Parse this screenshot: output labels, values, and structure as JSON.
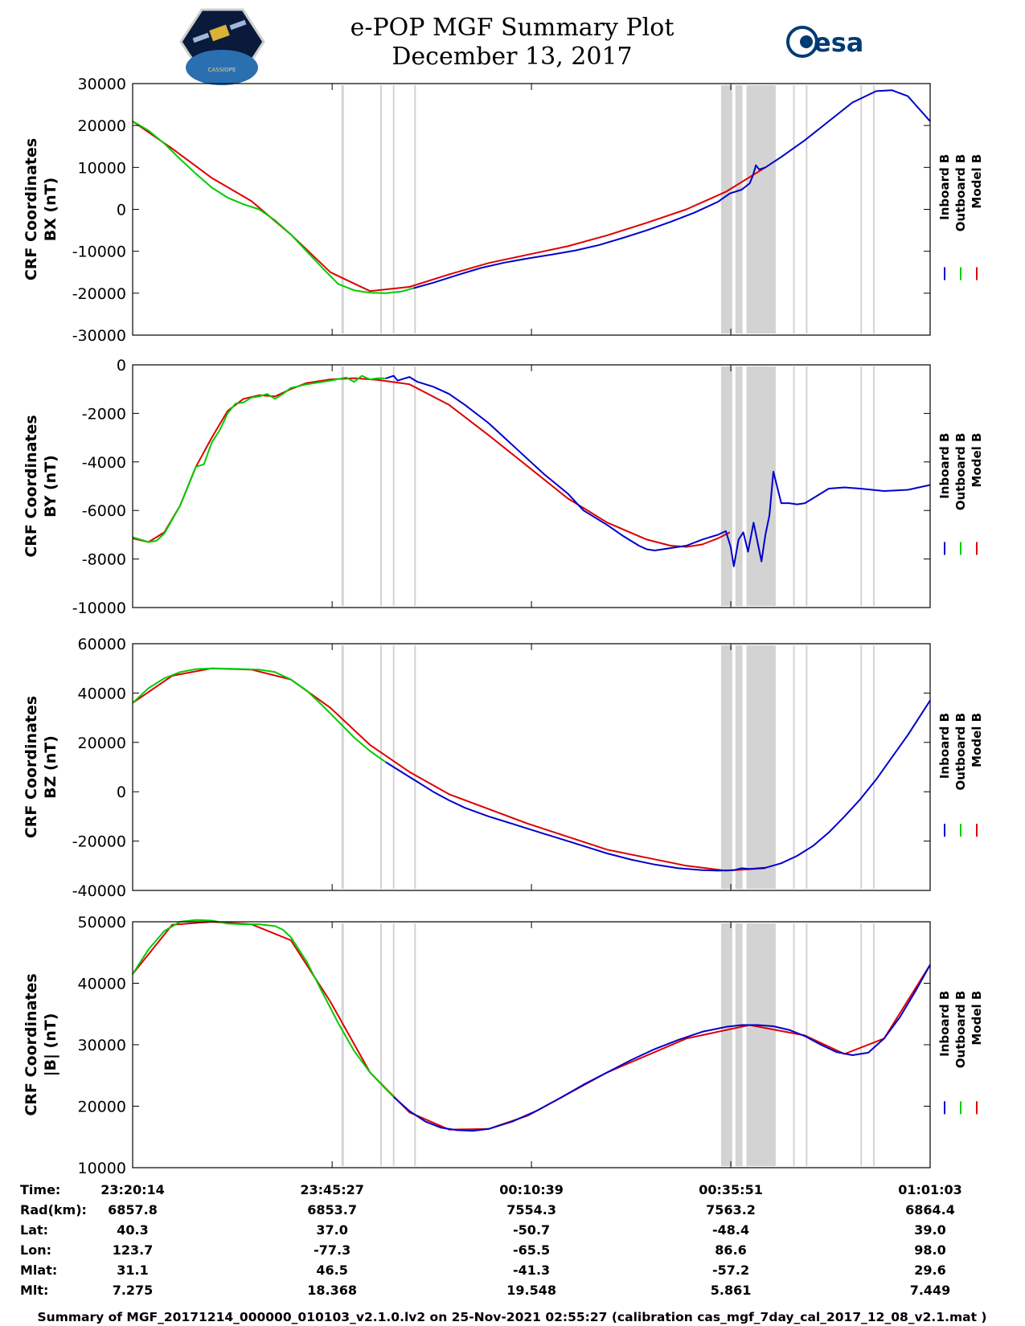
{
  "header": {
    "title": "e-POP MGF Summary Plot",
    "subtitle": "December 13, 2017",
    "logo_left_icon": "cassiope-satellite-logo",
    "logo_right_text": "esa"
  },
  "colors": {
    "inboard": "#0000cc",
    "outboard": "#00cc00",
    "model": "#dd0000",
    "gap_band": "#d3d3d3",
    "axis": "#000000"
  },
  "legend": {
    "entries": [
      {
        "label": "Inboard B",
        "color": "#0000cc"
      },
      {
        "label": "Outboard B",
        "color": "#00cc00"
      },
      {
        "label": "Model B",
        "color": "#dd0000"
      }
    ]
  },
  "x_ticks_minutes": [
    0,
    25.22,
    50.42,
    75.62,
    100.82
  ],
  "x_range_minutes": [
    0,
    100.82
  ],
  "gap_bands_minutes": [
    {
      "start": 26.4,
      "end": 26.7
    },
    {
      "start": 31.3,
      "end": 31.5
    },
    {
      "start": 32.9,
      "end": 33.1
    },
    {
      "start": 35.6,
      "end": 35.8
    },
    {
      "start": 74.4,
      "end": 75.8
    },
    {
      "start": 76.2,
      "end": 77.1
    },
    {
      "start": 77.6,
      "end": 81.3
    },
    {
      "start": 83.5,
      "end": 83.7
    },
    {
      "start": 85.1,
      "end": 85.3
    },
    {
      "start": 92.0,
      "end": 92.2
    },
    {
      "start": 93.6,
      "end": 93.8
    }
  ],
  "chart_data": [
    {
      "type": "line",
      "title": "e-POP MGF Summary Plot",
      "ylabel_line1": "CRF Coordinates",
      "ylabel_line2": "BX (nT)",
      "xlabel": "Time",
      "ylim": [
        -30000,
        30000
      ],
      "y_ticks": [
        "30000",
        "20000",
        "10000",
        "0",
        "-10000",
        "-20000",
        "-30000"
      ],
      "y_tick_values": [
        30000,
        20000,
        10000,
        0,
        -10000,
        -20000,
        -30000
      ],
      "series": [
        {
          "name": "Model B",
          "x": [
            0,
            5,
            10,
            15,
            20,
            25,
            30,
            35,
            40,
            45,
            50,
            55,
            60,
            65,
            70,
            75,
            80
          ],
          "values": [
            21000,
            14500,
            7500,
            2000,
            -6000,
            -15000,
            -19500,
            -18500,
            -15500,
            -12800,
            -10800,
            -8800,
            -6200,
            -3200,
            0,
            4200,
            10000
          ]
        },
        {
          "name": "Outboard B",
          "x": [
            0,
            2,
            4,
            6,
            8,
            10,
            12,
            14,
            16,
            18,
            20,
            22,
            24,
            26,
            28,
            30,
            32,
            34,
            35.5
          ],
          "values": [
            21000,
            18800,
            15700,
            12000,
            8500,
            5200,
            2800,
            1200,
            0,
            -2600,
            -6000,
            -10000,
            -14000,
            -17800,
            -19300,
            -19900,
            -20000,
            -19600,
            -18800
          ]
        },
        {
          "name": "Inboard B",
          "x": [
            35.5,
            38,
            41,
            44,
            47,
            50,
            53,
            56,
            59,
            62,
            65,
            68,
            71,
            74,
            75.5,
            77,
            78,
            78.4,
            78.8,
            79.2,
            80,
            82,
            85,
            88,
            91,
            94,
            96,
            98,
            100.82
          ],
          "values": [
            -18800,
            -17500,
            -15700,
            -14000,
            -12700,
            -11700,
            -10800,
            -9800,
            -8500,
            -6800,
            -5000,
            -3000,
            -800,
            1800,
            3800,
            4700,
            6200,
            8000,
            10500,
            9500,
            10000,
            12500,
            16500,
            21000,
            25500,
            28200,
            28400,
            27000,
            21000
          ]
        }
      ]
    },
    {
      "type": "line",
      "title": "",
      "ylabel_line1": "CRF Coordinates",
      "ylabel_line2": "BY (nT)",
      "xlabel": "Time",
      "ylim": [
        -10000,
        0
      ],
      "y_ticks": [
        "0",
        "-2000",
        "-4000",
        "-6000",
        "-8000",
        "-10000"
      ],
      "y_tick_values": [
        0,
        -2000,
        -4000,
        -6000,
        -8000,
        -10000
      ],
      "series": [
        {
          "name": "Model B",
          "x": [
            0,
            2,
            4,
            6,
            8,
            10,
            12,
            14,
            16,
            18,
            20,
            22,
            25,
            28,
            31,
            35,
            40,
            45,
            50,
            55,
            60,
            65,
            68,
            70,
            72,
            74,
            75.5
          ],
          "values": [
            -7150,
            -7300,
            -6900,
            -5800,
            -4200,
            -3000,
            -1900,
            -1400,
            -1250,
            -1300,
            -1000,
            -750,
            -600,
            -550,
            -620,
            -800,
            -1650,
            -2900,
            -4200,
            -5500,
            -6500,
            -7200,
            -7450,
            -7500,
            -7400,
            -7150,
            -6900
          ]
        },
        {
          "name": "Outboard B",
          "x": [
            0,
            2,
            3,
            4,
            6,
            7,
            8,
            9,
            10,
            11,
            12,
            13,
            14,
            15,
            16,
            17,
            18,
            19,
            20,
            22,
            25,
            27,
            28,
            29,
            30,
            31,
            32
          ],
          "values": [
            -7100,
            -7300,
            -7250,
            -6950,
            -5800,
            -5000,
            -4200,
            -4100,
            -3200,
            -2700,
            -2000,
            -1600,
            -1550,
            -1350,
            -1300,
            -1200,
            -1400,
            -1200,
            -950,
            -800,
            -650,
            -520,
            -700,
            -450,
            -600,
            -550,
            -560
          ]
        },
        {
          "name": "Inboard B",
          "x": [
            32,
            33,
            33.5,
            34,
            35,
            36,
            38,
            40,
            42,
            45,
            48,
            50,
            52,
            55,
            57,
            60,
            62,
            64,
            65,
            66,
            68,
            70,
            72,
            74,
            75,
            75.6,
            76,
            76.6,
            77.2,
            77.8,
            78.5,
            79,
            79.5,
            80,
            80.5,
            81,
            82,
            83,
            84,
            85,
            86,
            88,
            90,
            92,
            95,
            98,
            100.82
          ],
          "values": [
            -560,
            -450,
            -650,
            -600,
            -500,
            -700,
            -900,
            -1200,
            -1650,
            -2400,
            -3300,
            -3900,
            -4500,
            -5300,
            -6000,
            -6600,
            -7050,
            -7450,
            -7600,
            -7650,
            -7550,
            -7450,
            -7200,
            -7000,
            -6850,
            -7500,
            -8300,
            -7200,
            -6900,
            -7700,
            -6500,
            -7300,
            -8100,
            -7000,
            -6200,
            -4400,
            -5700,
            -5700,
            -5750,
            -5700,
            -5500,
            -5100,
            -5050,
            -5100,
            -5200,
            -5150,
            -4950
          ]
        }
      ]
    },
    {
      "type": "line",
      "title": "",
      "ylabel_line1": "CRF Coordinates",
      "ylabel_line2": "BZ (nT)",
      "xlabel": "Time",
      "ylim": [
        -40000,
        60000
      ],
      "y_ticks": [
        "60000",
        "40000",
        "20000",
        "0",
        "-20000",
        "-40000"
      ],
      "y_tick_values": [
        60000,
        40000,
        20000,
        0,
        -20000,
        -40000
      ],
      "series": [
        {
          "name": "Model B",
          "x": [
            0,
            5,
            10,
            15,
            20,
            25,
            30,
            35,
            40,
            50,
            60,
            70,
            75,
            80
          ],
          "values": [
            36000,
            47000,
            50000,
            49500,
            45500,
            34000,
            19000,
            8000,
            -1000,
            -13000,
            -23500,
            -30000,
            -32000,
            -31000
          ]
        },
        {
          "name": "Outboard B",
          "x": [
            0,
            2,
            4,
            6,
            8,
            10,
            12,
            14,
            16,
            18,
            20,
            22,
            24,
            26,
            28,
            30,
            32
          ],
          "values": [
            36000,
            42000,
            46000,
            48500,
            49700,
            50000,
            49900,
            49700,
            49500,
            48500,
            45500,
            41000,
            35000,
            28500,
            22000,
            16500,
            12000
          ]
        },
        {
          "name": "Inboard B",
          "x": [
            32,
            34,
            36,
            38,
            40,
            42,
            45,
            48,
            50,
            52,
            55,
            58,
            60,
            63,
            66,
            69,
            72,
            74,
            76,
            77,
            78,
            80,
            82,
            84,
            86,
            88,
            90,
            92,
            94,
            96,
            98,
            100.82
          ],
          "values": [
            12000,
            8000,
            4000,
            0,
            -3500,
            -6500,
            -10000,
            -13000,
            -15000,
            -17000,
            -20000,
            -23000,
            -25000,
            -27500,
            -29500,
            -31000,
            -31800,
            -32000,
            -31800,
            -31000,
            -31300,
            -30800,
            -29000,
            -26000,
            -22000,
            -16500,
            -10000,
            -3000,
            5000,
            14000,
            23000,
            37000
          ]
        }
      ]
    },
    {
      "type": "line",
      "title": "",
      "ylabel_line1": "CRF Coordinates",
      "ylabel_line2": "|B| (nT)",
      "xlabel": "Time",
      "ylim": [
        10000,
        50000
      ],
      "y_ticks": [
        "50000",
        "40000",
        "30000",
        "20000",
        "10000"
      ],
      "y_tick_values": [
        50000,
        40000,
        30000,
        20000,
        10000
      ],
      "series": [
        {
          "name": "Model B",
          "x": [
            0,
            5,
            10,
            15,
            20,
            25,
            30,
            35,
            40,
            45,
            50,
            60,
            70,
            78,
            85,
            90,
            95,
            100.82
          ],
          "values": [
            41500,
            49500,
            50000,
            49600,
            47000,
            37000,
            25500,
            19000,
            16200,
            16300,
            18500,
            25500,
            31000,
            33200,
            31500,
            28500,
            31000,
            43000
          ]
        },
        {
          "name": "Outboard B",
          "x": [
            0,
            2,
            4,
            6,
            8,
            10,
            12,
            14,
            16,
            18,
            19,
            20,
            21,
            22,
            23,
            24,
            26,
            28,
            30,
            32,
            33
          ],
          "values": [
            41500,
            45500,
            48500,
            50000,
            50300,
            50200,
            49700,
            49600,
            49600,
            49300,
            48700,
            47500,
            45500,
            43500,
            41000,
            38500,
            33500,
            29000,
            25500,
            22800,
            21500
          ]
        },
        {
          "name": "Inboard B",
          "x": [
            33,
            35,
            37,
            39,
            41,
            43,
            45,
            48,
            51,
            54,
            57,
            60,
            63,
            66,
            69,
            72,
            75,
            77,
            79,
            81,
            83,
            85,
            87,
            89,
            91,
            93,
            95,
            97,
            99,
            100.82
          ],
          "values": [
            21500,
            19200,
            17500,
            16500,
            16100,
            16000,
            16300,
            17500,
            19200,
            21300,
            23500,
            25500,
            27500,
            29300,
            30800,
            32100,
            32900,
            33200,
            33200,
            33000,
            32400,
            31400,
            30000,
            28800,
            28300,
            28700,
            31000,
            34500,
            38800,
            43000
          ]
        }
      ]
    }
  ],
  "info_table": {
    "labels": [
      "Time:",
      "Rad(km):",
      "Lat:",
      "Lon:",
      "Mlat:",
      "Mlt:"
    ],
    "columns": [
      {
        "values": [
          "23:20:14",
          "6857.8",
          "40.3",
          "123.7",
          "31.1",
          "7.275"
        ]
      },
      {
        "values": [
          "23:45:27",
          "6853.7",
          "37.0",
          "-77.3",
          "46.5",
          "18.368"
        ]
      },
      {
        "values": [
          "00:10:39",
          "7554.3",
          "-50.7",
          "-65.5",
          "-41.3",
          "19.548"
        ]
      },
      {
        "values": [
          "00:35:51",
          "7563.2",
          "-48.4",
          "86.6",
          "-57.2",
          "5.861"
        ]
      },
      {
        "values": [
          "01:01:03",
          "6864.4",
          "39.0",
          "98.0",
          "29.6",
          "7.449"
        ]
      }
    ]
  },
  "footer": {
    "text": "Summary of MGF_20171214_000000_010103_v2.1.0.lv2 on 25-Nov-2021 02:55:27 (calibration cas_mgf_7day_cal_2017_12_08_v2.1.mat )"
  }
}
